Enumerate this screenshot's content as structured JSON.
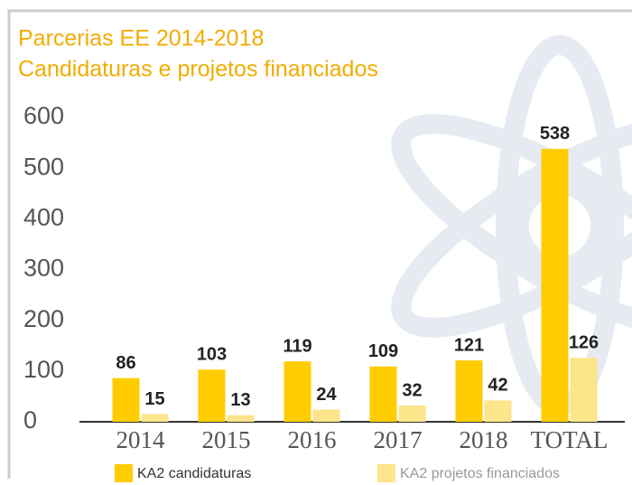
{
  "chart_data": {
    "type": "bar",
    "title": "Parcerias EE 2014-2018",
    "subtitle": "Candidaturas e projetos financiados",
    "categories": [
      "2014",
      "2015",
      "2016",
      "2017",
      "2018",
      "TOTAL"
    ],
    "series": [
      {
        "name": "KA2 candidaturas",
        "color": "#ffcc00",
        "values": [
          86,
          103,
          119,
          109,
          121,
          538
        ]
      },
      {
        "name": "KA2 projetos financiados",
        "color": "#fce58a",
        "values": [
          15,
          13,
          24,
          32,
          42,
          126
        ]
      }
    ],
    "ylim": [
      0,
      600
    ],
    "yticks": [
      0,
      100,
      200,
      300,
      400,
      500,
      600
    ]
  }
}
